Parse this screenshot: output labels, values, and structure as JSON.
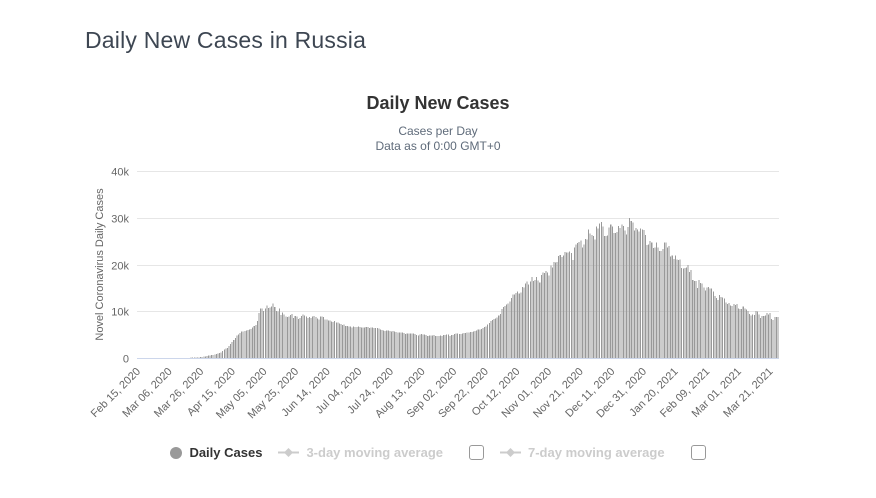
{
  "page": {
    "title": "Daily New Cases in Russia"
  },
  "chart": {
    "title": "Daily New Cases",
    "subtitle_line1": "Cases per Day",
    "subtitle_line2": "Data as of 0:00 GMT+0",
    "y_axis_title": "Novel Coronavirus Daily Cases",
    "legend_items": [
      {
        "label": "Daily Cases",
        "marker": "circle",
        "active": true,
        "has_checkbox": false
      },
      {
        "label": "3-day moving average",
        "marker": "line-diamond",
        "active": false,
        "has_checkbox": true,
        "checked": false
      },
      {
        "label": "7-day moving average",
        "marker": "line-diamond",
        "active": false,
        "has_checkbox": true,
        "checked": false
      }
    ],
    "colors": {
      "bar": "#999999",
      "grid": "#e6e6e6",
      "axis_line": "#ccd6eb",
      "axis_text": "#666666",
      "title_text": "#333333",
      "subtitle_text": "#5f6b7a",
      "page_title_text": "#3d4652",
      "legend_active": "#333333",
      "legend_hidden": "#cccccc"
    }
  },
  "chart_data": {
    "type": "bar",
    "title": "Daily New Cases",
    "subtitle": "Cases per Day — Data as of 0:00 GMT+0",
    "series_name": "Daily Cases",
    "ylabel": "Novel Coronavirus Daily Cases",
    "ylim": [
      0,
      40000
    ],
    "y_tick_labels": [
      "0",
      "10k",
      "20k",
      "30k",
      "40k"
    ],
    "x_start": "Feb 15, 2020",
    "x_end": "Mar 27, 2021",
    "x_tick_every_days": 20,
    "x_tick_labels": [
      "Feb 15, 2020",
      "Mar 06, 2020",
      "Mar 26, 2020",
      "Apr 15, 2020",
      "May 05, 2020",
      "May 25, 2020",
      "Jun 14, 2020",
      "Jul 04, 2020",
      "Jul 24, 2020",
      "Aug 13, 2020",
      "Sep 02, 2020",
      "Sep 22, 2020",
      "Oct 12, 2020",
      "Nov 01, 2020",
      "Nov 21, 2020",
      "Dec 11, 2020",
      "Dec 31, 2020",
      "Jan 20, 2021",
      "Feb 09, 2021",
      "Mar 01, 2021",
      "Mar 21, 2021"
    ],
    "legend_entries": [
      "Daily Cases",
      "3-day moving average",
      "7-day moving average"
    ],
    "grid": true,
    "legend_position": "bottom",
    "values": [
      0,
      0,
      0,
      0,
      0,
      0,
      0,
      0,
      0,
      0,
      0,
      0,
      0,
      0,
      0,
      0,
      0,
      0,
      0,
      0,
      0,
      0,
      0,
      0,
      0,
      5,
      8,
      10,
      15,
      20,
      30,
      35,
      42,
      52,
      60,
      75,
      90,
      110,
      135,
      160,
      190,
      230,
      280,
      340,
      420,
      500,
      560,
      620,
      690,
      770,
      860,
      960,
      1080,
      1220,
      1480,
      1790,
      2000,
      2190,
      2560,
      2980,
      3390,
      3850,
      4270,
      4790,
      5060,
      5340,
      5640,
      5710,
      5780,
      5850,
      5960,
      6080,
      6200,
      6500,
      6800,
      7100,
      7930,
      9620,
      10630,
      10580,
      10100,
      10560,
      11230,
      10700,
      10820,
      11010,
      11660,
      10900,
      10030,
      9970,
      10600,
      9200,
      9710,
      9260,
      8930,
      8760,
      8890,
      9200,
      9430,
      8600,
      8950,
      8920,
      8370,
      8570,
      8950,
      9270,
      9040,
      8860,
      8540,
      8730,
      8600,
      8860,
      8990,
      8820,
      8400,
      8210,
      8840,
      8850,
      8790,
      8250,
      8250,
      8070,
      7970,
      7790,
      7730,
      7890,
      7600,
      7580,
      7430,
      7240,
      7110,
      7180,
      6850,
      6800,
      6690,
      6690,
      6560,
      6760,
      6630,
      6640,
      6740,
      6610,
      6560,
      6540,
      6510,
      6640,
      6610,
      6420,
      6540,
      6480,
      6420,
      6430,
      6410,
      6300,
      6110,
      5940,
      5860,
      5800,
      5850,
      5870,
      5760,
      5690,
      5760,
      5650,
      5510,
      5480,
      5480,
      5460,
      5430,
      5390,
      5160,
      5200,
      5270,
      5240,
      5210,
      5190,
      5120,
      4950,
      4830,
      5060,
      5110,
      5060,
      5020,
      4890,
      4750,
      4830,
      4790,
      4850,
      4920,
      4740,
      4700,
      4700,
      4830,
      4710,
      4890,
      4940,
      4980,
      4990,
      4730,
      4950,
      4890,
      5110,
      5210,
      5200,
      5170,
      5100,
      5220,
      5310,
      5360,
      5450,
      5490,
      5530,
      5530,
      5670,
      5760,
      5910,
      6070,
      6150,
      6200,
      6430,
      6600,
      6720,
      7210,
      7520,
      7870,
      8130,
      8370,
      8480,
      8700,
      9040,
      9410,
      10500,
      10890,
      11120,
      11490,
      11620,
      12130,
      12850,
      13590,
      13630,
      13870,
      14230,
      13750,
      13970,
      15150,
      15100,
      15980,
      16320,
      15700,
      16410,
      17340,
      16520,
      16710,
      17350,
      16550,
      16200,
      17720,
      18280,
      18140,
      18660,
      18260,
      17680,
      19770,
      19400,
      20580,
      20400,
      20500,
      21800,
      21980,
      21610,
      21900,
      22700,
      22570,
      22570,
      22780,
      22410,
      20980,
      23610,
      24320,
      24580,
      24820,
      25170,
      23680,
      24330,
      25490,
      25350,
      27540,
      26680,
      26340,
      26080,
      25350,
      28150,
      27700,
      28780,
      29040,
      28140,
      26100,
      26060,
      26190,
      27930,
      28590,
      28080,
      26690,
      26690,
      26900,
      28210,
      27790,
      28520,
      28210,
      27250,
      26460,
      27970,
      29940,
      29260,
      29020,
      27250,
      27790,
      27540,
      27040,
      27750,
      27460,
      27330,
      26300,
      24150,
      24250,
      25080,
      24760,
      23540,
      23650,
      24710,
      23590,
      22850,
      22930,
      23310,
      24760,
      24720,
      23590,
      23970,
      21730,
      21880,
      21150,
      21890,
      21100,
      20920,
      21030,
      19290,
      19140,
      19240,
      19390,
      19930,
      18360,
      18830,
      16640,
      16470,
      16510,
      15020,
      16690,
      16050,
      15920,
      15090,
      14490,
      15040,
      15230,
      14860,
      14860,
      14210,
      13230,
      12830,
      12460,
      13430,
      13070,
      12950,
      12740,
      11860,
      11570,
      11750,
      11200,
      11080,
      11530,
      11380,
      11570,
      10540,
      10440,
      10530,
      11020,
      10590,
      10350,
      10020,
      9450,
      9140,
      9270,
      9170,
      10080,
      9910,
      9270,
      8590,
      9000,
      8990,
      9130,
      9630,
      9300,
      9600,
      8370,
      8160,
      8770,
      8790,
      8780
    ]
  }
}
